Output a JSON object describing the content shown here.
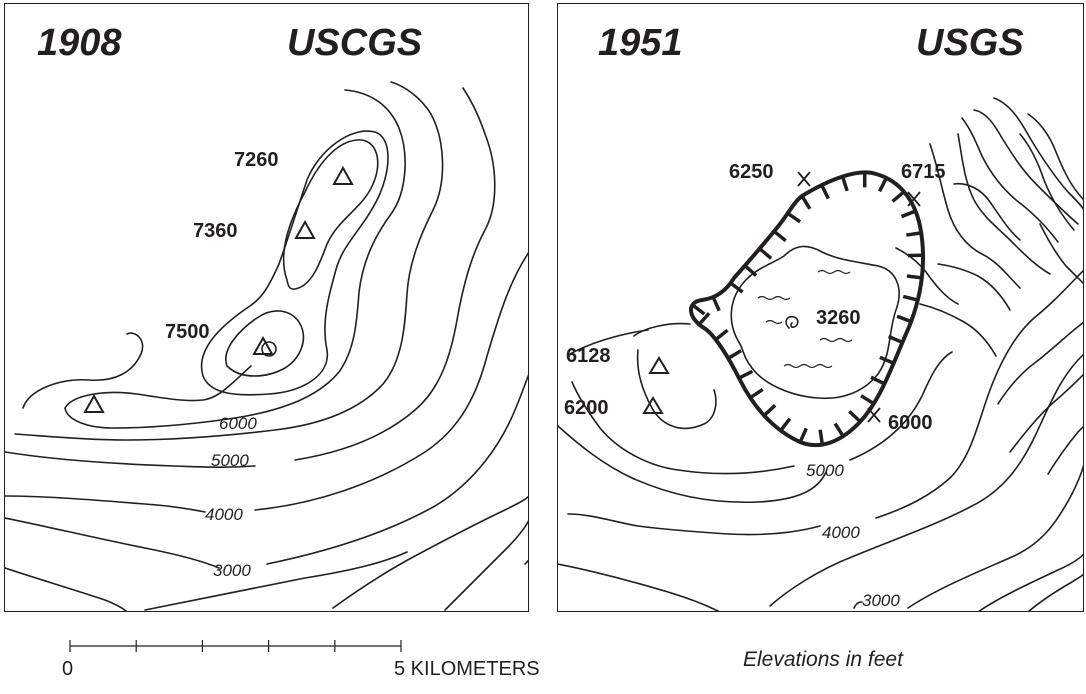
{
  "panels": [
    {
      "year": "1908",
      "agency": "USCGS",
      "peak_labels": [
        "7260",
        "7360",
        "7500"
      ],
      "contour_labels": [
        "6000",
        "5000",
        "4000",
        "3000"
      ]
    },
    {
      "year": "1951",
      "agency": "USGS",
      "point_labels": [
        "6250",
        "6715",
        "6128",
        "6200",
        "6000",
        "3260"
      ],
      "contour_labels": [
        "5000",
        "4000",
        "3000"
      ]
    }
  ],
  "scale": {
    "start_label": "0",
    "end_label": "5 KILOMETERS",
    "divisions": 5
  },
  "note": "Elevations in feet",
  "colors": {
    "ink": "#231f20",
    "background": "#ffffff"
  }
}
